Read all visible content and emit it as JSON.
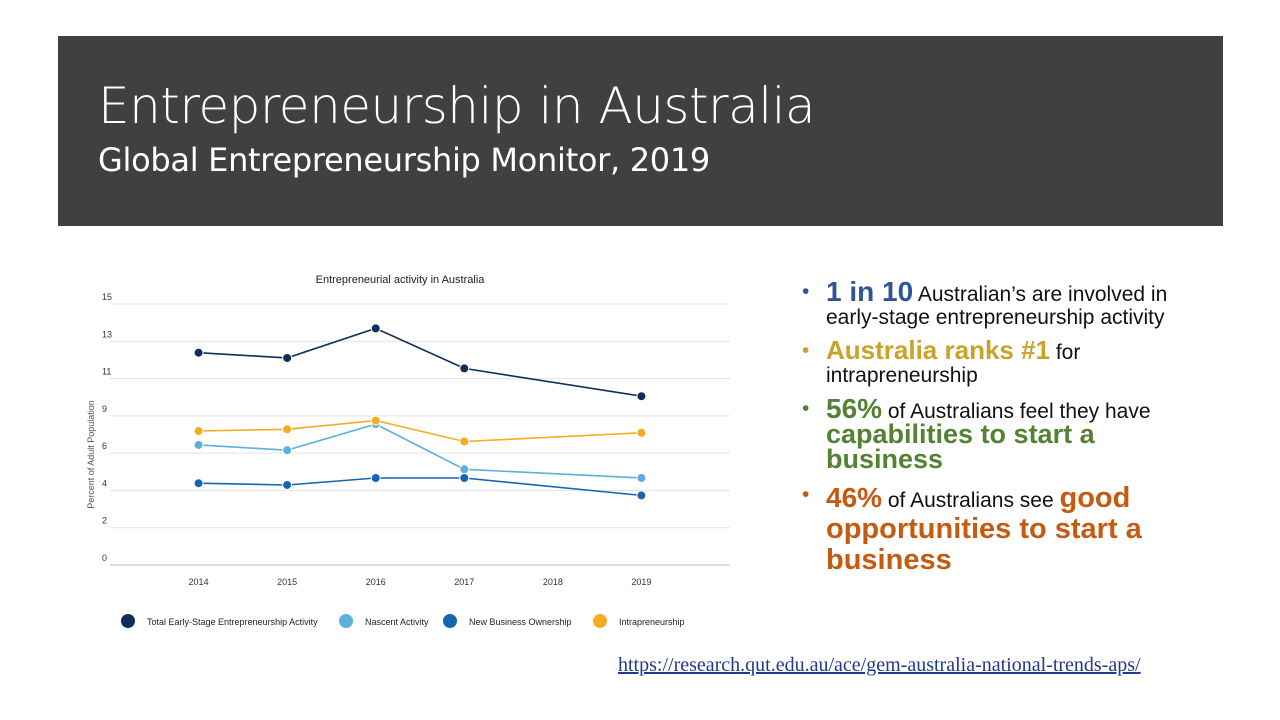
{
  "slide": {
    "title": "Entrepreneurship in Australia",
    "subtitle": "Global Entrepreneurship Monitor, 2019",
    "source_link": "https://research.qut.edu.au/ace/gem-australia-national-trends-aps/"
  },
  "colors": {
    "header_bg": "#404040",
    "blue_text": "#2f5597",
    "gold_text": "#c9a227",
    "green_text": "#548235",
    "orange_text": "#c55a11"
  },
  "bullets": [
    {
      "strong": "1 in 10",
      "text": " Australian’s are involved in early-stage entrepreneurship activity"
    },
    {
      "strong": "Australia ranks #1",
      "text": " for intrapreneurship"
    },
    {
      "strong": "56%",
      "text": " of Australians feel they have ",
      "strong2": "capabilities to start a business"
    },
    {
      "strong": "46%",
      "text": " of Australians see ",
      "strong2": "good opportunities to start a business"
    }
  ],
  "chart_data": {
    "type": "line",
    "title": "Entrepreneurial activity in Australia",
    "ylabel": "Percent of Adult Population",
    "xlabel": "",
    "x": [
      2014,
      2015,
      2016,
      2017,
      2018,
      2019
    ],
    "x_tick_labels": [
      "2014",
      "2015",
      "2016",
      "2017",
      "2018",
      "2019"
    ],
    "y_tick_labels": [
      "0",
      "2",
      "4",
      "6",
      "9",
      "11",
      "13",
      "15"
    ],
    "ylim": [
      0,
      15
    ],
    "grid": true,
    "legend_position": "bottom",
    "series": [
      {
        "name": "Total Early-Stage Entrepreneurship Activity",
        "color": "#0d2f5a",
        "points": [
          [
            2014,
            12.2
          ],
          [
            2015,
            11.9
          ],
          [
            2016,
            13.6
          ],
          [
            2017,
            11.3
          ],
          [
            2019,
            9.7
          ]
        ]
      },
      {
        "name": "Nascent Activity",
        "color": "#5bb0de",
        "points": [
          [
            2014,
            6.9
          ],
          [
            2015,
            6.6
          ],
          [
            2016,
            8.1
          ],
          [
            2017,
            5.5
          ],
          [
            2019,
            5.0
          ]
        ]
      },
      {
        "name": "New Business Ownership",
        "color": "#1565b0",
        "points": [
          [
            2014,
            4.7
          ],
          [
            2015,
            4.6
          ],
          [
            2016,
            5.0
          ],
          [
            2017,
            5.0
          ],
          [
            2019,
            4.0
          ]
        ]
      },
      {
        "name": "Intrapreneurship",
        "color": "#f2ae1f",
        "points": [
          [
            2014,
            7.7
          ],
          [
            2015,
            7.8
          ],
          [
            2016,
            8.3
          ],
          [
            2017,
            7.1
          ],
          [
            2019,
            7.6
          ]
        ]
      }
    ]
  }
}
